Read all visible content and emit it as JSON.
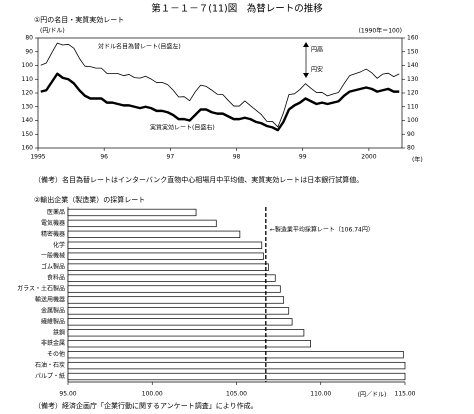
{
  "title": "第１－１－７(11)図　為替レートの推移",
  "chart_data": [
    {
      "type": "line",
      "subtitle": "①円の名目・実質実効レート",
      "y_label": "(円/ドル)",
      "y2_label": "(1990年＝100)",
      "x_unit": "(年)",
      "categories": [
        "1995",
        null,
        null,
        null,
        null,
        null,
        null,
        null,
        null,
        null,
        null,
        null,
        "96",
        null,
        null,
        null,
        null,
        null,
        null,
        null,
        null,
        null,
        null,
        null,
        "97",
        null,
        null,
        null,
        null,
        null,
        null,
        null,
        null,
        null,
        null,
        null,
        "98",
        null,
        null,
        null,
        null,
        null,
        null,
        null,
        null,
        null,
        null,
        null,
        "99",
        null,
        null,
        null,
        null,
        null,
        null,
        null,
        null,
        null,
        null,
        null,
        "2000",
        null,
        null,
        null,
        null,
        null
      ],
      "ylim": [
        80,
        160
      ],
      "y_inverted": true,
      "yticks": [
        80,
        90,
        100,
        110,
        120,
        130,
        140,
        150,
        160
      ],
      "y2lim": [
        80,
        160
      ],
      "y2ticks": [
        80,
        90,
        100,
        110,
        120,
        130,
        140,
        150,
        160
      ],
      "up_label": "円高",
      "down_label": "円安",
      "series": [
        {
          "name": "対ドル名目為替レート(目盛左)",
          "color": "#000000",
          "line_width": 0.8,
          "values": [
            99.8,
            98.2,
            90.8,
            83.7,
            85.1,
            84.6,
            87.4,
            94.7,
            100.5,
            100.8,
            101.9,
            101.9,
            105.8,
            105.8,
            105.9,
            107.4,
            106.5,
            108.8,
            109.2,
            107.8,
            109.8,
            112.4,
            112.3,
            113.9,
            117.9,
            122.9,
            122.7,
            125.6,
            119.2,
            114.3,
            115.2,
            117.9,
            120.9,
            121.1,
            125.4,
            129.5,
            129.5,
            125.8,
            129.1,
            132.4,
            135.7,
            140.6,
            140.7,
            144.7,
            134.5,
            121.1,
            120.6,
            117.4,
            113.2,
            116.6,
            119.7,
            119.6,
            122.1,
            120.7,
            119.6,
            113.2,
            107.4,
            106.0,
            104.6,
            102.6,
            105.2,
            109.3,
            106.3,
            105.6,
            108.1,
            106.1
          ]
        },
        {
          "name": "実質実効レート(目盛右)",
          "color": "#000000",
          "line_width": 2.4,
          "axis": "y2",
          "values": [
            121,
            122,
            128,
            134,
            131,
            130,
            127,
            122,
            118,
            116,
            116,
            116,
            113,
            113,
            112,
            111,
            111,
            110,
            109,
            110,
            109,
            107,
            107,
            106,
            104,
            101,
            101,
            100,
            104,
            108,
            108,
            106,
            105,
            105,
            103,
            101,
            101,
            102,
            101,
            99,
            98,
            96,
            95,
            93,
            99,
            108,
            111,
            113,
            116,
            114,
            112,
            113,
            112,
            113,
            114,
            118,
            121,
            122,
            123,
            124,
            123,
            121,
            122,
            123,
            121,
            121
          ]
        }
      ],
      "note": "（備考）名目為替レートはインターバンク直物中心相場月中平均値、実質実効レートは日本銀行試算値。"
    },
    {
      "type": "hbar",
      "subtitle": "②輸出企業（製造業）の採算レート",
      "categories": [
        "医薬品",
        "電気機器",
        "精密機器",
        "化学",
        "一般機械",
        "ゴム製品",
        "食料品",
        "ガラス・土石製品",
        "輸送用機器",
        "金属製品",
        "繊維製品",
        "鉄鋼",
        "非鉄金属",
        "その他",
        "石油・石炭",
        "パルプ・紙"
      ],
      "values": [
        102.6,
        103.8,
        105.2,
        106.5,
        106.6,
        106.9,
        107.3,
        107.6,
        107.8,
        108.1,
        108.3,
        109.0,
        109.4,
        114.9,
        115.0,
        115.0
      ],
      "color": "#ffffff",
      "xlim": [
        95,
        115
      ],
      "xticks": [
        {
          "value": 95,
          "label": "95.00"
        },
        {
          "value": 100,
          "label": "100.00"
        },
        {
          "value": 105,
          "label": "105.00"
        },
        {
          "value": 110,
          "label": "110.00"
        },
        {
          "value": 115,
          "label": "115.00"
        }
      ],
      "x_unit": "(円／ドル)",
      "avg_value": 106.74,
      "avg_label": "←製造業平均採算レート（106.74円）",
      "note": "（備考）経済企画庁「企業行動に関するアンケート調査」により作成。"
    }
  ]
}
